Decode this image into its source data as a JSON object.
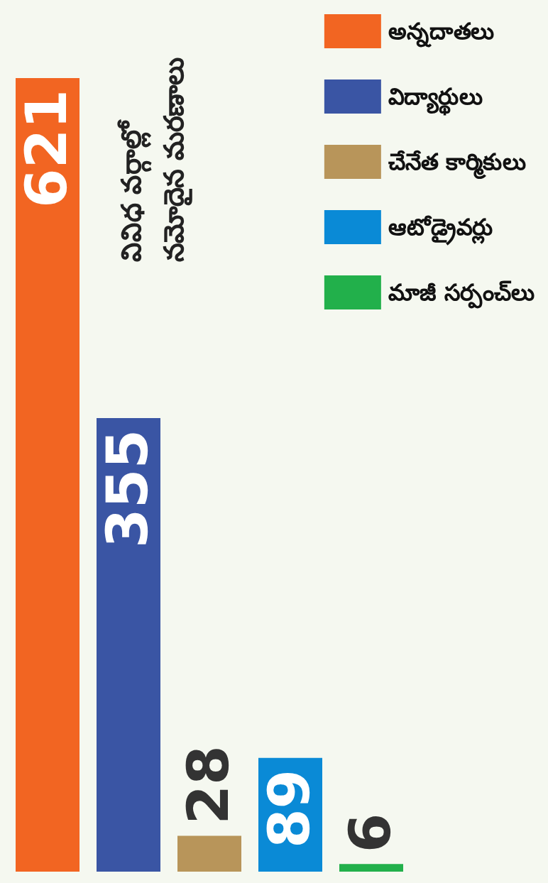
{
  "chart_data": {
    "type": "bar",
    "title": "వివిధ వర్గాల్లో\nనమోదైన మరణాలు",
    "categories": [
      null,
      null,
      null,
      null,
      null
    ],
    "stacked": true,
    "data_labels": true,
    "legend": "top right",
    "series": [
      {
        "name": "అన్నదాతలు",
        "color": "#f26522",
        "values": [
          621,
          null,
          null,
          null,
          null
        ]
      },
      {
        "name": "విద్యార్థులు",
        "color": "#3a55a4",
        "values": [
          null,
          355,
          null,
          null,
          null
        ]
      },
      {
        "name": "చేనేత కార్మికులు",
        "color": "#b8955a",
        "values": [
          null,
          null,
          28,
          null,
          null
        ]
      },
      {
        "name": "ఆటోడ్రైవర్లు",
        "color": "#0a8ad6",
        "values": [
          null,
          null,
          null,
          89,
          null
        ]
      },
      {
        "name": "మాజీ సర్పంచ్‌లు",
        "color": "#22b04b",
        "values": [
          null,
          null,
          null,
          null,
          6
        ]
      }
    ]
  }
}
